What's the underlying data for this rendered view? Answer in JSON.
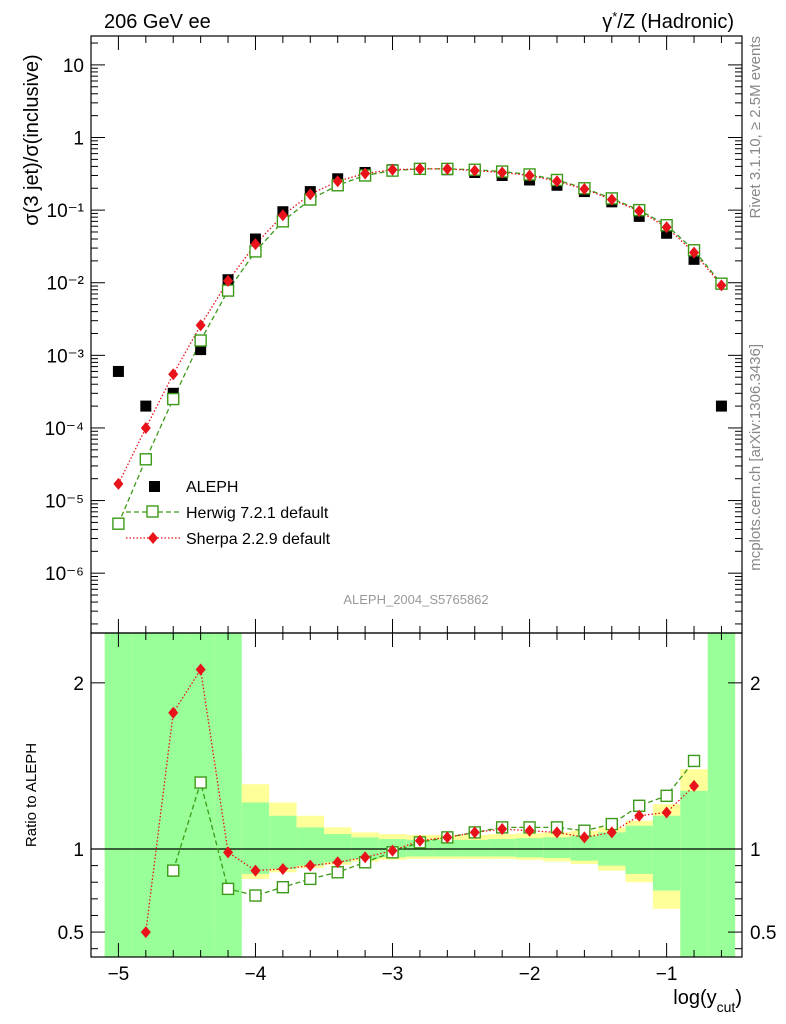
{
  "header": {
    "left": "206 GeV ee",
    "right_symbol": "γ",
    "right_sup": "*",
    "right_rest": "/Z (Hadronic)"
  },
  "side_labels": {
    "rivet": "Rivet 3.1.10, ≥ 2.5M events",
    "mcplots": "mcplots.cern.ch [arXiv:1306.3436]"
  },
  "analysis_label": "ALEPH_2004_S5765862",
  "chart_data": [
    {
      "type": "scatter",
      "panel": "main",
      "ylabel": "σ(3 jet)/σ(inclusive)",
      "yscale": "log",
      "ylim": [
        1.5e-07,
        25
      ],
      "xlim": [
        -5.2,
        -0.45
      ],
      "y_tick_labels": [
        "10",
        "1",
        "10⁻¹",
        "10⁻²",
        "10⁻³",
        "10⁻⁴",
        "10⁻⁵",
        "10⁻⁶"
      ],
      "legend": {
        "placement": "lower-left",
        "entries": [
          "ALEPH",
          "Herwig 7.2.1 default",
          "Sherpa 2.2.9 default"
        ]
      },
      "series": [
        {
          "name": "ALEPH",
          "color": "#000000",
          "marker": "square",
          "x": [
            -5.0,
            -4.8,
            -4.6,
            -4.4,
            -4.2,
            -4.0,
            -3.8,
            -3.6,
            -3.4,
            -3.2,
            -3.0,
            -2.8,
            -2.6,
            -2.4,
            -2.2,
            -2.0,
            -1.8,
            -1.6,
            -1.4,
            -1.2,
            -1.0,
            -0.8,
            -0.6
          ],
          "y": [
            0.0006,
            0.0002,
            0.0003,
            0.0012,
            0.011,
            0.04,
            0.095,
            0.18,
            0.27,
            0.33,
            0.36,
            0.37,
            0.36,
            0.33,
            0.3,
            0.26,
            0.22,
            0.18,
            0.13,
            0.082,
            0.048,
            0.021,
            0.0002
          ]
        },
        {
          "name": "Herwig 7.2.1 default",
          "color": "#3c9a18",
          "marker": "open-square",
          "line": "dashed",
          "x": [
            -5.0,
            -4.8,
            -4.6,
            -4.4,
            -4.2,
            -4.0,
            -3.8,
            -3.6,
            -3.4,
            -3.2,
            -3.0,
            -2.8,
            -2.6,
            -2.4,
            -2.2,
            -2.0,
            -1.8,
            -1.6,
            -1.4,
            -1.2,
            -1.0,
            -0.8,
            -0.6
          ],
          "y": [
            4.8e-06,
            3.7e-05,
            0.00025,
            0.0016,
            0.0078,
            0.027,
            0.07,
            0.14,
            0.22,
            0.3,
            0.35,
            0.37,
            0.37,
            0.36,
            0.34,
            0.31,
            0.26,
            0.2,
            0.145,
            0.1,
            0.062,
            0.028,
            0.0097
          ]
        },
        {
          "name": "Sherpa 2.2.9 default",
          "color": "#e8121b",
          "marker": "diamond",
          "line": "dotted",
          "x": [
            -5.0,
            -4.8,
            -4.6,
            -4.4,
            -4.2,
            -4.0,
            -3.8,
            -3.6,
            -3.4,
            -3.2,
            -3.0,
            -2.8,
            -2.6,
            -2.4,
            -2.2,
            -2.0,
            -1.8,
            -1.6,
            -1.4,
            -1.2,
            -1.0,
            -0.8,
            -0.6
          ],
          "y": [
            1.7e-05,
            0.0001,
            0.00055,
            0.0026,
            0.0106,
            0.034,
            0.085,
            0.165,
            0.25,
            0.32,
            0.36,
            0.37,
            0.37,
            0.35,
            0.33,
            0.3,
            0.25,
            0.195,
            0.14,
            0.097,
            0.058,
            0.026,
            0.0092
          ]
        }
      ]
    },
    {
      "type": "line",
      "panel": "ratio",
      "xlabel_main": "log(y",
      "xlabel_sub": "cut",
      "xlabel_end": ")",
      "ylabel": "Ratio to ALEPH",
      "ylim": [
        0.35,
        2.3
      ],
      "xlim": [
        -5.2,
        -0.45
      ],
      "x_tick_labels": [
        "−5",
        "−4",
        "−3",
        "−2",
        "−1"
      ],
      "y_tick_labels": [
        "0.5",
        "1",
        "2"
      ],
      "reference_line": 1,
      "bands": {
        "bin_edges": [
          -5.1,
          -4.9,
          -4.7,
          -4.5,
          -4.3,
          -4.1,
          -3.9,
          -3.7,
          -3.5,
          -3.3,
          -3.1,
          -2.9,
          -2.7,
          -2.5,
          -2.3,
          -2.1,
          -1.9,
          -1.7,
          -1.5,
          -1.3,
          -1.1,
          -0.9,
          -0.7,
          -0.5
        ],
        "green_lo": [
          0.35,
          0.35,
          0.35,
          0.35,
          0.35,
          0.35,
          0.35,
          0.35,
          0.35,
          0.35,
          0.35,
          0.35,
          0.35,
          0.35,
          0.35,
          0.35,
          0.35,
          0.35,
          0.35,
          0.35,
          0.35,
          0.35,
          0.35
        ],
        "green_hi": [
          2.3,
          2.3,
          2.3,
          2.3,
          2.3,
          0.35,
          0.35,
          0.35,
          0.35,
          0.35,
          0.35,
          0.35,
          0.35,
          0.35,
          0.35,
          0.35,
          0.35,
          0.35,
          0.35,
          0.35,
          0.35,
          0.35,
          2.3
        ],
        "green_band_lo": [
          0.35,
          0.35,
          0.35,
          0.35,
          0.35,
          0.85,
          0.88,
          0.9,
          0.92,
          0.94,
          0.95,
          0.955,
          0.955,
          0.955,
          0.955,
          0.95,
          0.945,
          0.93,
          0.9,
          0.85,
          0.75,
          0.35,
          0.35
        ],
        "green_band_hi": [
          2.3,
          2.3,
          2.3,
          2.3,
          2.3,
          1.28,
          1.2,
          1.13,
          1.09,
          1.07,
          1.06,
          1.055,
          1.055,
          1.055,
          1.06,
          1.065,
          1.07,
          1.08,
          1.1,
          1.14,
          1.2,
          1.35,
          2.3
        ],
        "yellow_band_lo": [
          0.35,
          0.35,
          0.35,
          0.35,
          0.5,
          0.82,
          0.86,
          0.885,
          0.905,
          0.925,
          0.935,
          0.94,
          0.94,
          0.94,
          0.94,
          0.935,
          0.925,
          0.91,
          0.87,
          0.8,
          0.64,
          0.35,
          0.35
        ],
        "yellow_band_hi": [
          2.3,
          2.3,
          2.3,
          2.3,
          1.58,
          1.39,
          1.28,
          1.2,
          1.13,
          1.1,
          1.09,
          1.085,
          1.085,
          1.085,
          1.09,
          1.095,
          1.1,
          1.11,
          1.13,
          1.17,
          1.27,
          1.48,
          2.3
        ]
      },
      "series": [
        {
          "name": "Herwig 7.2.1 default",
          "color": "#3c9a18",
          "marker": "open-square",
          "line": "dashed",
          "x": [
            -4.6,
            -4.4,
            -4.2,
            -4.0,
            -3.8,
            -3.6,
            -3.4,
            -3.2,
            -3.0,
            -2.8,
            -2.6,
            -2.4,
            -2.2,
            -2.0,
            -1.8,
            -1.6,
            -1.4,
            -1.2,
            -1.0,
            -0.8
          ],
          "y": [
            0.87,
            1.4,
            0.76,
            0.72,
            0.77,
            0.82,
            0.86,
            0.92,
            0.98,
            1.04,
            1.07,
            1.1,
            1.13,
            1.13,
            1.13,
            1.11,
            1.15,
            1.26,
            1.32,
            1.53
          ]
        },
        {
          "name": "Sherpa 2.2.9 default",
          "color": "#e8121b",
          "marker": "diamond",
          "line": "dotted",
          "x": [
            -4.8,
            -4.6,
            -4.4,
            -4.2,
            -4.0,
            -3.8,
            -3.6,
            -3.4,
            -3.2,
            -3.0,
            -2.8,
            -2.6,
            -2.4,
            -2.2,
            -2.0,
            -1.8,
            -1.6,
            -1.4,
            -1.2,
            -1.0,
            -0.8
          ],
          "y": [
            0.5,
            1.82,
            2.08,
            0.98,
            0.87,
            0.88,
            0.9,
            0.92,
            0.95,
            0.99,
            1.05,
            1.07,
            1.1,
            1.12,
            1.11,
            1.1,
            1.07,
            1.1,
            1.2,
            1.22,
            1.38
          ]
        }
      ]
    }
  ]
}
